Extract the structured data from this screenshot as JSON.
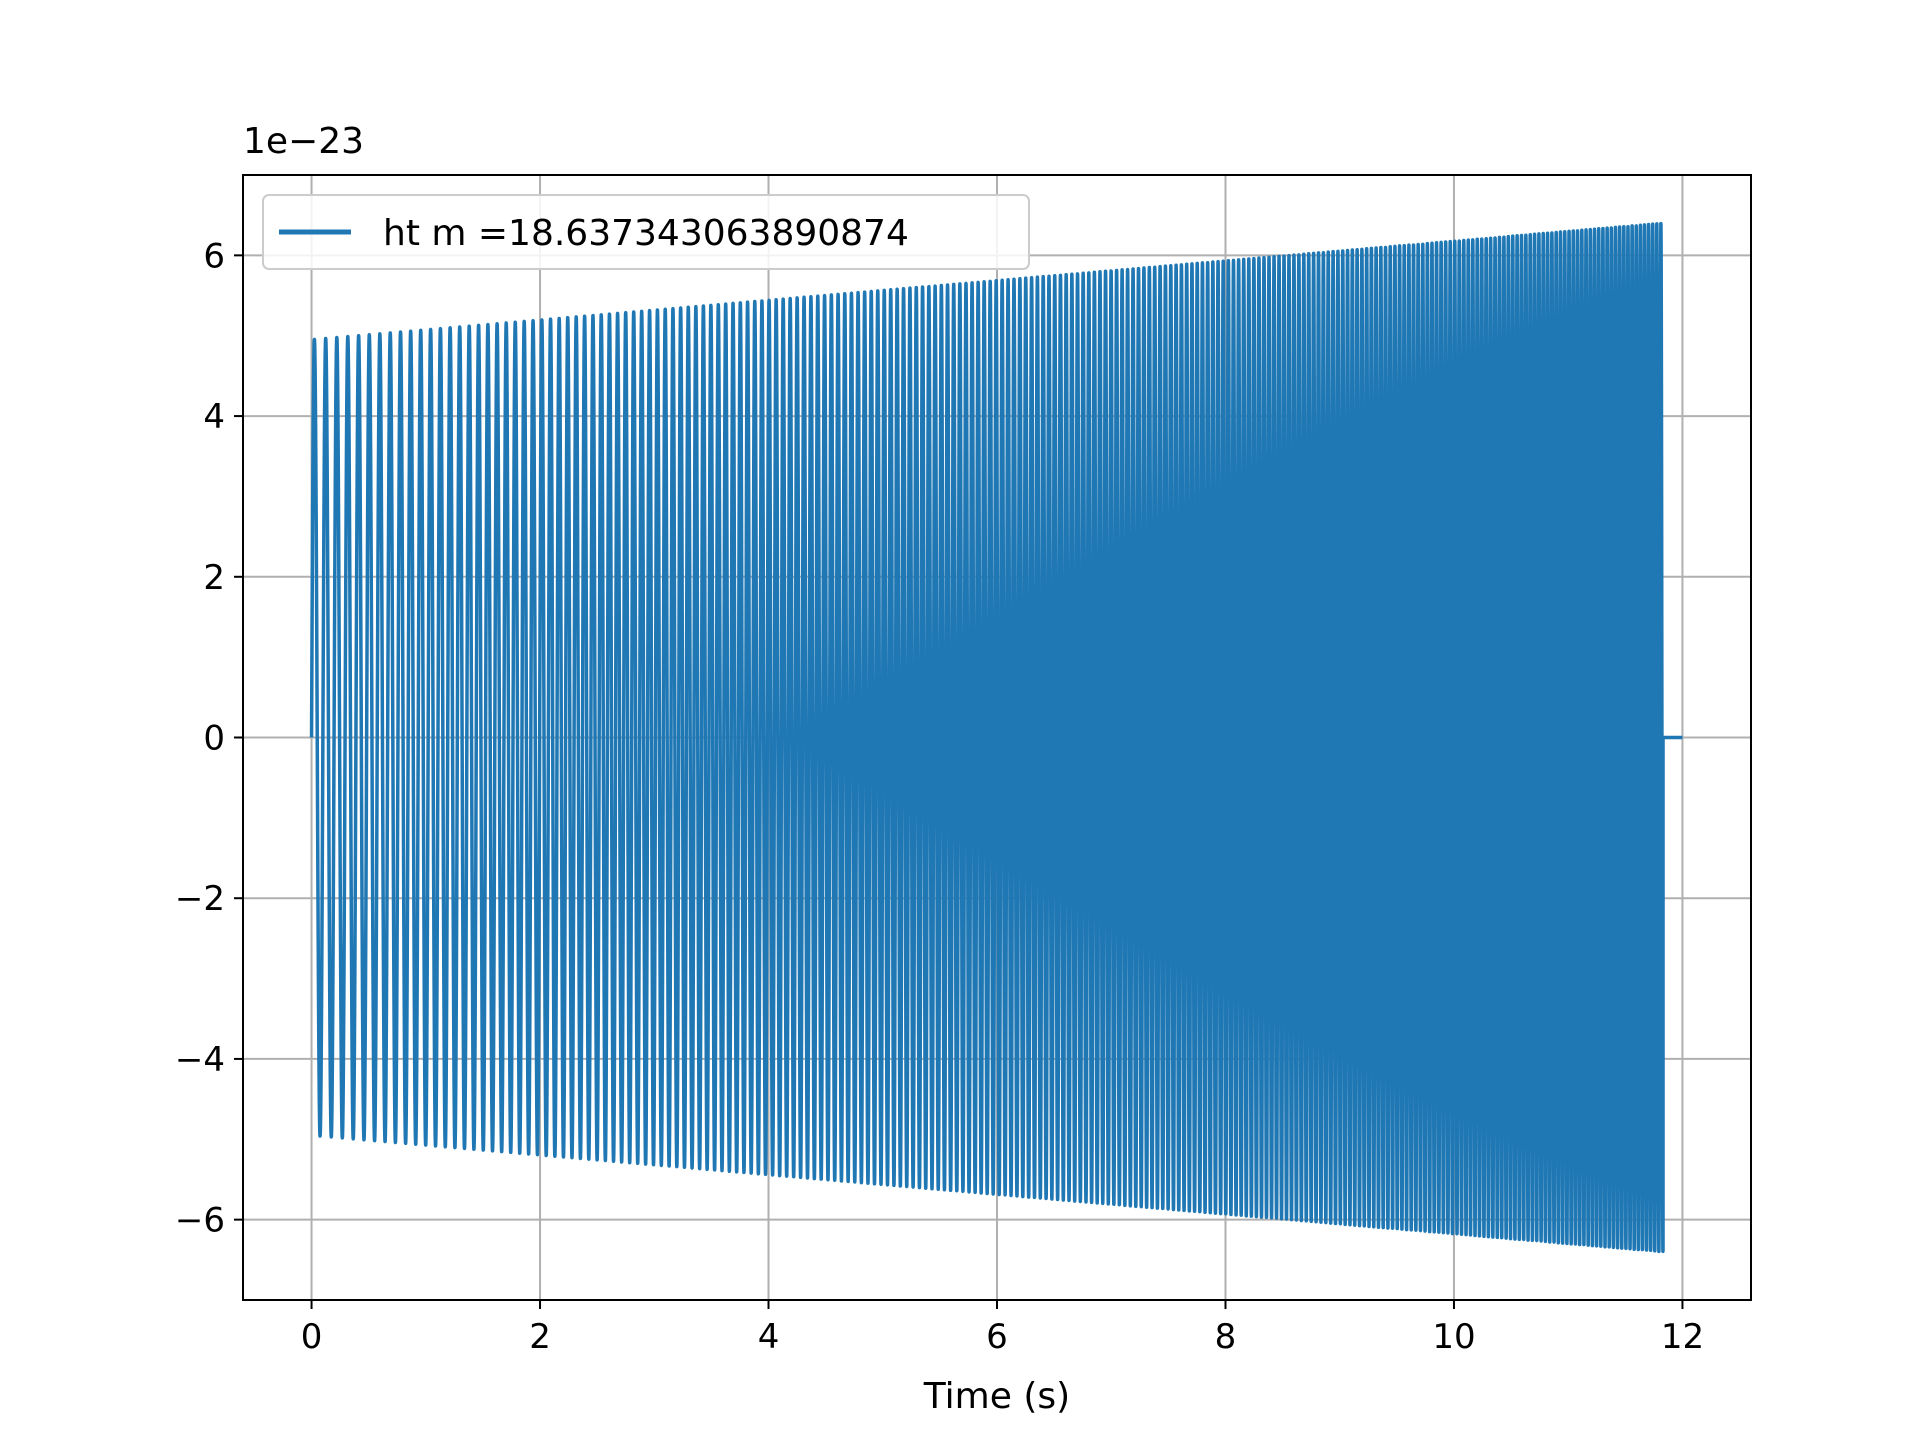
{
  "chart_data": {
    "type": "line",
    "title": "",
    "xlabel": "Time (s)",
    "ylabel": "",
    "y_offset_text": "1e−23",
    "xlim": [
      -0.6,
      12.6
    ],
    "ylim": [
      -7,
      7
    ],
    "x_ticks": [
      0,
      2,
      4,
      6,
      8,
      10,
      12
    ],
    "x_tick_labels": [
      "0",
      "2",
      "4",
      "6",
      "8",
      "10",
      "12"
    ],
    "y_ticks": [
      -6,
      -4,
      -2,
      0,
      2,
      4,
      6
    ],
    "y_tick_labels": [
      "−6",
      "−4",
      "−2",
      "0",
      "2",
      "4",
      "6"
    ],
    "grid": true,
    "legend_position": "upper-left",
    "series": [
      {
        "name": "ht m =18.637343063890874",
        "color": "#1f77b4",
        "signal": {
          "kind": "chirp",
          "t_start": 0,
          "t_end": 11.83,
          "t_flat_end": 12.0,
          "amplitude_start": 4.95,
          "amplitude_end": 6.4,
          "frequency_start": 10.0,
          "frequency_end": 28.0
        }
      }
    ]
  }
}
